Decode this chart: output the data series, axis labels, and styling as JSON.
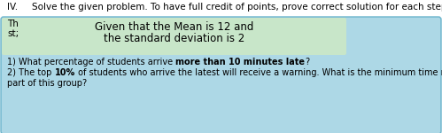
{
  "header_roman": "IV.",
  "header_text": "Solve the given problem. To have full credit of points, prove correct solution for each step.",
  "left_label_line1": "Th",
  "left_label_line2": "st;",
  "green_box_line1": "Given that the Mean is 12 and",
  "green_box_line2": "the standard deviation is 2",
  "q1_seg1": "1) What percentage of students arrive ",
  "q1_seg2": "more than 10 minutes late",
  "q1_seg3": "?",
  "q2_seg1": "2) The top ",
  "q2_seg2": "10%",
  "q2_seg3": " of students who arrive the latest will receive a warning. What is the minimum time needed to be",
  "q2_line2": "part of this group?",
  "outer_bg": "#add8e6",
  "green_bg": "#c8e6c9",
  "outer_edge": "#6ab4cc",
  "text_color": "#000000",
  "white_bg": "#ffffff",
  "header_fontsize": 7.5,
  "body_fontsize": 7.0,
  "green_fontsize": 8.5
}
